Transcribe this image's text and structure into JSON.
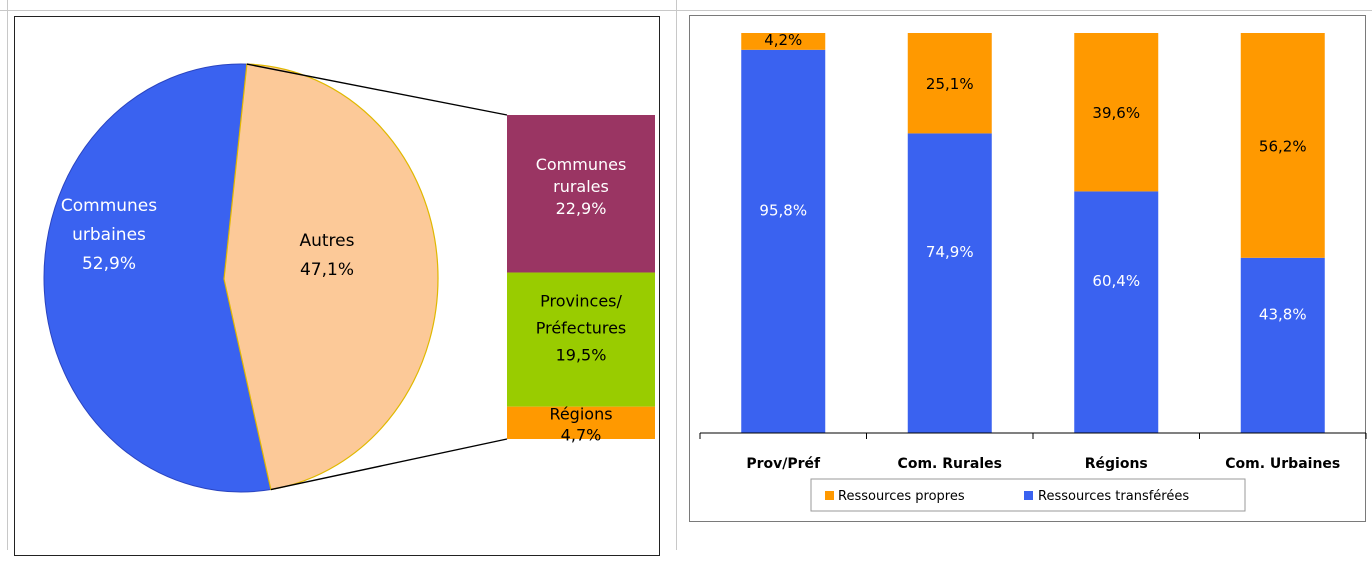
{
  "chart_data": [
    {
      "type": "pie",
      "slices": [
        {
          "label_lines": [
            "Communes",
            "urbaines",
            "52,9%"
          ],
          "value": 52.9,
          "color": "#3a62f0"
        },
        {
          "label_lines": [
            "Autres",
            "47,1%"
          ],
          "value": 47.1,
          "color": "#fcc998"
        }
      ],
      "breakdown": [
        {
          "label_lines": [
            "Communes",
            "rurales",
            "22,9%"
          ],
          "value": 22.9,
          "color": "#9a3563"
        },
        {
          "label_lines": [
            "Provinces/",
            "Préfectures",
            "19,5%"
          ],
          "value": 19.5,
          "color": "#99cc00"
        },
        {
          "label_lines": [
            "Régions",
            "4,7%"
          ],
          "value": 4.7,
          "color": "#ff9900"
        }
      ]
    },
    {
      "type": "bar",
      "stacked": true,
      "percent": true,
      "categories": [
        "Prov/Préf",
        "Com. Rurales",
        "Régions",
        "Com. Urbaines"
      ],
      "series": [
        {
          "name": "Ressources transférées",
          "color": "#3a62f0",
          "values": [
            95.8,
            74.9,
            60.4,
            43.8
          ],
          "labels": [
            "95,8%",
            "74,9%",
            "60,4%",
            "43,8%"
          ]
        },
        {
          "name": "Ressources propres",
          "color": "#ff9900",
          "values": [
            4.2,
            25.1,
            39.6,
            56.2
          ],
          "labels": [
            "4,2%",
            "25,1%",
            "39,6%",
            "56,2%"
          ]
        }
      ],
      "legend": {
        "position": "bottom",
        "items": [
          "Ressources propres",
          "Ressources transférées"
        ]
      },
      "ylim": [
        0,
        100
      ]
    }
  ]
}
